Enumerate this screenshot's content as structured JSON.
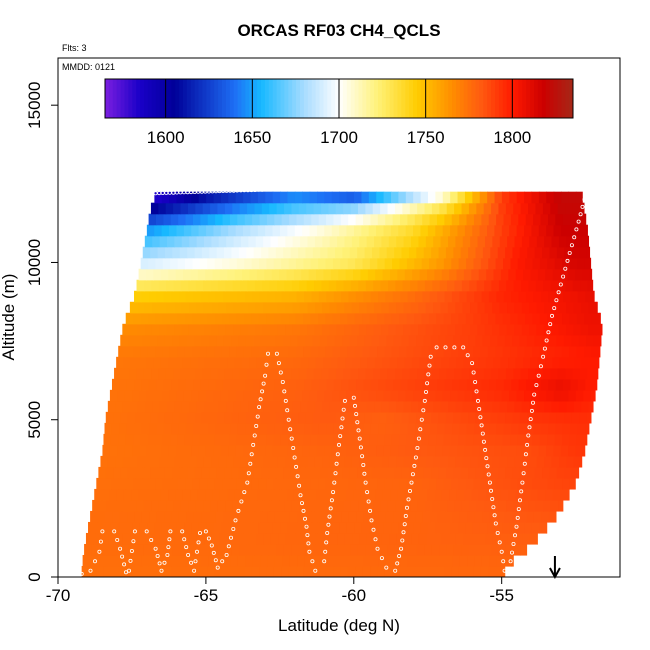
{
  "chart_data": {
    "type": "heatmap",
    "title": "ORCAS RF03 CH4_QCLS",
    "subtitle_flights": "Flts: 3",
    "subtitle_date": "MMDD: 0121",
    "xlabel": "Latitude (deg N)",
    "ylabel": "Altitude (m)",
    "xlim": [
      -70,
      -51
    ],
    "ylim": [
      0,
      16500
    ],
    "x_ticks": [
      -70,
      -65,
      -60,
      -55
    ],
    "x_tick_labels": [
      "-70",
      "-65",
      "-60",
      "-55"
    ],
    "y_ticks": [
      0,
      5000,
      10000,
      15000
    ],
    "y_tick_labels": [
      "0",
      "5000",
      "10000",
      "15000"
    ],
    "colorbar": {
      "range": [
        1565,
        1835
      ],
      "ticks": [
        1600,
        1650,
        1700,
        1750,
        1800
      ],
      "tick_labels": [
        "1600",
        "1650",
        "1700",
        "1750",
        "1800"
      ],
      "placement": "top-inside"
    },
    "colormap": [
      [
        1565,
        "#7b1fe0"
      ],
      [
        1585,
        "#1a00c8"
      ],
      [
        1605,
        "#000099"
      ],
      [
        1640,
        "#1e6ff5"
      ],
      [
        1655,
        "#16b8ff"
      ],
      [
        1680,
        "#a8dcff"
      ],
      [
        1700,
        "#ffffff"
      ],
      [
        1722,
        "#fff27a"
      ],
      [
        1745,
        "#ffcc00"
      ],
      [
        1765,
        "#ff8e00"
      ],
      [
        1782,
        "#ff5a10"
      ],
      [
        1800,
        "#ff1a00"
      ],
      [
        1818,
        "#cc0000"
      ],
      [
        1835,
        "#a52818"
      ]
    ],
    "field_profiles": [
      {
        "alt": 300,
        "lat_min": -69.2,
        "lat_max": -54.9,
        "values": [
          {
            "lat": -69,
            "v": 1775
          },
          {
            "lat": -60,
            "v": 1777
          },
          {
            "lat": -55,
            "v": 1778
          }
        ]
      },
      {
        "alt": 1000,
        "lat_min": -69.1,
        "lat_max": -54.0,
        "values": [
          {
            "lat": -69,
            "v": 1776
          },
          {
            "lat": -62,
            "v": 1778
          },
          {
            "lat": -55,
            "v": 1780
          }
        ]
      },
      {
        "alt": 2000,
        "lat_min": -68.9,
        "lat_max": -53.1,
        "values": [
          {
            "lat": -69,
            "v": 1776
          },
          {
            "lat": -58,
            "v": 1779
          },
          {
            "lat": -53,
            "v": 1784
          }
        ]
      },
      {
        "alt": 3000,
        "lat_min": -68.7,
        "lat_max": -52.5,
        "values": [
          {
            "lat": -69,
            "v": 1775
          },
          {
            "lat": -58,
            "v": 1779
          },
          {
            "lat": -53,
            "v": 1788
          }
        ]
      },
      {
        "alt": 4000,
        "lat_min": -68.5,
        "lat_max": -52.2,
        "values": [
          {
            "lat": -69,
            "v": 1774
          },
          {
            "lat": -61,
            "v": 1779
          },
          {
            "lat": -54,
            "v": 1786
          },
          {
            "lat": -52.5,
            "v": 1792
          }
        ]
      },
      {
        "alt": 5000,
        "lat_min": -68.4,
        "lat_max": -52.0,
        "values": [
          {
            "lat": -69,
            "v": 1774
          },
          {
            "lat": -61,
            "v": 1782
          },
          {
            "lat": -59,
            "v": 1780
          },
          {
            "lat": -54,
            "v": 1792
          },
          {
            "lat": -52.5,
            "v": 1794
          }
        ]
      },
      {
        "alt": 6000,
        "lat_min": -68.2,
        "lat_max": -51.8,
        "values": [
          {
            "lat": -69,
            "v": 1773
          },
          {
            "lat": -62,
            "v": 1780
          },
          {
            "lat": -55,
            "v": 1796
          },
          {
            "lat": -53,
            "v": 1808
          },
          {
            "lat": -52,
            "v": 1800
          }
        ]
      },
      {
        "alt": 7000,
        "lat_min": -68.0,
        "lat_max": -51.7,
        "values": [
          {
            "lat": -69,
            "v": 1772
          },
          {
            "lat": -62,
            "v": 1777
          },
          {
            "lat": -56,
            "v": 1790
          },
          {
            "lat": -52,
            "v": 1800
          }
        ]
      },
      {
        "alt": 8000,
        "lat_min": -67.8,
        "lat_max": -51.6,
        "values": [
          {
            "lat": -68,
            "v": 1765
          },
          {
            "lat": -62,
            "v": 1772
          },
          {
            "lat": -56,
            "v": 1790
          },
          {
            "lat": -52,
            "v": 1806
          }
        ]
      },
      {
        "alt": 9000,
        "lat_min": -67.4,
        "lat_max": -51.9,
        "values": [
          {
            "lat": -67.5,
            "v": 1742
          },
          {
            "lat": -62,
            "v": 1752
          },
          {
            "lat": -58,
            "v": 1775
          },
          {
            "lat": -55,
            "v": 1797
          },
          {
            "lat": -52,
            "v": 1808
          }
        ]
      },
      {
        "alt": 10000,
        "lat_min": -67.2,
        "lat_max": -52.0,
        "values": [
          {
            "lat": -67,
            "v": 1690
          },
          {
            "lat": -64,
            "v": 1705
          },
          {
            "lat": -60,
            "v": 1728
          },
          {
            "lat": -57,
            "v": 1762
          },
          {
            "lat": -54.5,
            "v": 1800
          },
          {
            "lat": -52.5,
            "v": 1815
          }
        ]
      },
      {
        "alt": 11000,
        "lat_min": -67.0,
        "lat_max": -52.1,
        "values": [
          {
            "lat": -67,
            "v": 1650
          },
          {
            "lat": -64,
            "v": 1682
          },
          {
            "lat": -61,
            "v": 1708
          },
          {
            "lat": -58,
            "v": 1738
          },
          {
            "lat": -55,
            "v": 1790
          },
          {
            "lat": -53,
            "v": 1818
          }
        ]
      },
      {
        "alt": 11600,
        "lat_min": -66.9,
        "lat_max": -52.2,
        "values": [
          {
            "lat": -67,
            "v": 1610
          },
          {
            "lat": -64,
            "v": 1650
          },
          {
            "lat": -60,
            "v": 1690
          },
          {
            "lat": -57,
            "v": 1740
          },
          {
            "lat": -55,
            "v": 1790
          },
          {
            "lat": -53,
            "v": 1820
          }
        ]
      },
      {
        "alt": 12200,
        "lat_min": -66.7,
        "lat_max": -52.3,
        "values": [
          {
            "lat": -67,
            "v": 1570
          },
          {
            "lat": -65,
            "v": 1605
          },
          {
            "lat": -62,
            "v": 1640
          },
          {
            "lat": -60,
            "v": 1620
          },
          {
            "lat": -57,
            "v": 1700
          },
          {
            "lat": -55,
            "v": 1790
          },
          {
            "lat": -53,
            "v": 1822
          }
        ]
      }
    ],
    "flight_track": [
      [
        -69.2,
        100
      ],
      [
        -68.9,
        200
      ],
      [
        -68.6,
        800
      ],
      [
        -68.5,
        1450
      ],
      [
        -68.1,
        1450
      ],
      [
        -67.9,
        900
      ],
      [
        -67.7,
        150
      ],
      [
        -67.6,
        200
      ],
      [
        -67.4,
        1450
      ],
      [
        -67.0,
        1450
      ],
      [
        -66.7,
        900
      ],
      [
        -66.5,
        200
      ],
      [
        -66.3,
        700
      ],
      [
        -66.2,
        1450
      ],
      [
        -65.8,
        1450
      ],
      [
        -65.6,
        700
      ],
      [
        -65.4,
        200
      ],
      [
        -65.2,
        1400
      ],
      [
        -65.0,
        1450
      ],
      [
        -64.8,
        1000
      ],
      [
        -64.6,
        300
      ],
      [
        -64.3,
        700
      ],
      [
        -64.0,
        1800
      ],
      [
        -63.6,
        3000
      ],
      [
        -63.4,
        4200
      ],
      [
        -63.2,
        5400
      ],
      [
        -63.0,
        6400
      ],
      [
        -62.9,
        7100
      ],
      [
        -62.6,
        7100
      ],
      [
        -62.4,
        6200
      ],
      [
        -62.2,
        5000
      ],
      [
        -62.0,
        3800
      ],
      [
        -61.8,
        2600
      ],
      [
        -61.6,
        1600
      ],
      [
        -61.5,
        800
      ],
      [
        -61.3,
        200
      ],
      [
        -61.0,
        500
      ],
      [
        -60.9,
        1400
      ],
      [
        -60.7,
        2700
      ],
      [
        -60.5,
        4200
      ],
      [
        -60.3,
        5600
      ],
      [
        -60.0,
        5700
      ],
      [
        -59.8,
        4400
      ],
      [
        -59.6,
        3000
      ],
      [
        -59.4,
        1800
      ],
      [
        -59.2,
        900
      ],
      [
        -58.9,
        300
      ],
      [
        -58.6,
        200
      ],
      [
        -58.4,
        900
      ],
      [
        -58.2,
        2200
      ],
      [
        -57.9,
        3800
      ],
      [
        -57.6,
        5600
      ],
      [
        -57.4,
        7000
      ],
      [
        -57.2,
        7300
      ],
      [
        -56.6,
        7300
      ],
      [
        -56.3,
        7300
      ],
      [
        -56.0,
        6800
      ],
      [
        -55.8,
        5600
      ],
      [
        -55.6,
        4300
      ],
      [
        -55.4,
        3000
      ],
      [
        -55.2,
        1700
      ],
      [
        -55.0,
        800
      ],
      [
        -54.9,
        200
      ],
      [
        -54.7,
        500
      ],
      [
        -54.5,
        1600
      ],
      [
        -54.3,
        3000
      ],
      [
        -54.1,
        4500
      ],
      [
        -53.9,
        5800
      ],
      [
        -53.6,
        7000
      ],
      [
        -53.3,
        8300
      ],
      [
        -53.0,
        9300
      ],
      [
        -52.7,
        10300
      ],
      [
        -52.4,
        11300
      ],
      [
        -52.2,
        12000
      ],
      [
        -52.0,
        12600
      ],
      [
        -51.8,
        11800
      ],
      [
        -51.6,
        10500
      ],
      [
        -51.4,
        9000
      ],
      [
        -51.3,
        7800
      ],
      [
        -51.4,
        6600
      ],
      [
        -51.6,
        5500
      ],
      [
        -51.7,
        4500
      ],
      [
        -51.9,
        3500
      ],
      [
        -52.1,
        2500
      ],
      [
        -52.3,
        1500
      ],
      [
        -52.5,
        800
      ],
      [
        -52.7,
        300
      ]
    ],
    "flight_track_top": {
      "alt_start": 12200,
      "alt_end": 12650,
      "lat_start": -66.7,
      "lat_end": -52.3
    },
    "marker": {
      "lat": -53.2,
      "type": "arrow-down"
    }
  }
}
